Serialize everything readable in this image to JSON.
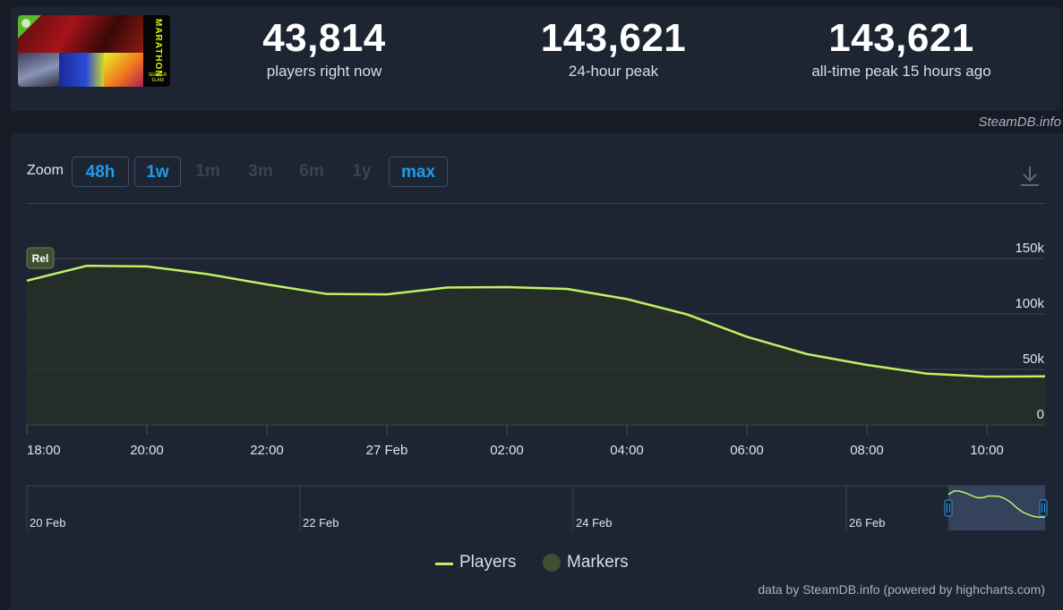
{
  "game": {
    "logo_text": "MARATHON",
    "logo_sub": "SERVER SLAM"
  },
  "stats": [
    {
      "value": "43,814",
      "label": "players right now"
    },
    {
      "value": "143,621",
      "label": "24-hour peak"
    },
    {
      "value": "143,621",
      "label": "all-time peak 15 hours ago"
    }
  ],
  "credit_top": "SteamDB.info",
  "zoom": {
    "label": "Zoom",
    "buttons": [
      {
        "label": "48h",
        "active": true
      },
      {
        "label": "1w",
        "active": true
      },
      {
        "label": "1m",
        "active": false
      },
      {
        "label": "3m",
        "active": false
      },
      {
        "label": "6m",
        "active": false
      },
      {
        "label": "1y",
        "active": false
      },
      {
        "label": "max",
        "active": true
      }
    ]
  },
  "chart_data": {
    "type": "area",
    "series": [
      {
        "name": "Players",
        "color": "#bef264",
        "x": [
          "18:00",
          "19:00",
          "20:00",
          "21:00",
          "22:00",
          "23:00",
          "27 Feb 00:00",
          "01:00",
          "02:00",
          "03:00",
          "04:00",
          "05:00",
          "06:00",
          "07:00",
          "08:00",
          "09:00",
          "10:00",
          "11:00"
        ],
        "values": [
          130000,
          143400,
          142800,
          136000,
          126600,
          118000,
          117600,
          123800,
          124200,
          122600,
          113400,
          99600,
          79400,
          63800,
          54000,
          46200,
          43400,
          43800
        ]
      }
    ],
    "marker": {
      "label": "Rel",
      "x": "18:00"
    },
    "x_ticks": [
      "18:00",
      "20:00",
      "22:00",
      "27 Feb",
      "02:00",
      "04:00",
      "06:00",
      "08:00",
      "10:00"
    ],
    "y_ticks": [
      "0",
      "50k",
      "100k",
      "150k"
    ],
    "ylim": [
      0,
      150000
    ],
    "grid": true,
    "navigator": {
      "labels": [
        "20 Feb",
        "22 Feb",
        "24 Feb",
        "26 Feb"
      ]
    },
    "legend": [
      {
        "name": "Players",
        "color": "#bef264"
      },
      {
        "name": "Markers",
        "color": "#3f4f31"
      }
    ]
  },
  "credit_bottom": "data by SteamDB.info (powered by highcharts.com)"
}
